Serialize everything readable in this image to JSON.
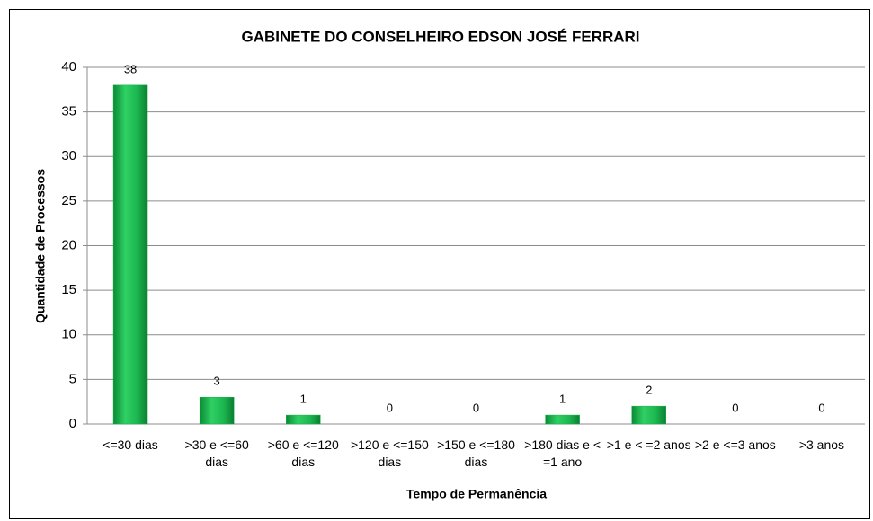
{
  "chart_data": {
    "type": "bar",
    "title": "GABINETE DO CONSELHEIRO EDSON JOSÉ FERRARI",
    "x_label": "Tempo de Permanência",
    "y_label": "Quantidade de Processos",
    "categories": [
      "<=30 dias",
      ">30 e <=60 dias",
      ">60 e <=120 dias",
      ">120 e <=150 dias",
      ">150 e <=180 dias",
      ">180 dias e < =1 ano",
      ">1 e < =2 anos",
      ">2 e <=3 anos",
      ">3 anos"
    ],
    "values": [
      38,
      3,
      1,
      0,
      0,
      1,
      2,
      0,
      0
    ],
    "color": "#16b14c",
    "ylim": [
      0,
      40
    ],
    "yticks": [
      0,
      5,
      10,
      15,
      20,
      25,
      30,
      35,
      40
    ],
    "grid": true
  }
}
